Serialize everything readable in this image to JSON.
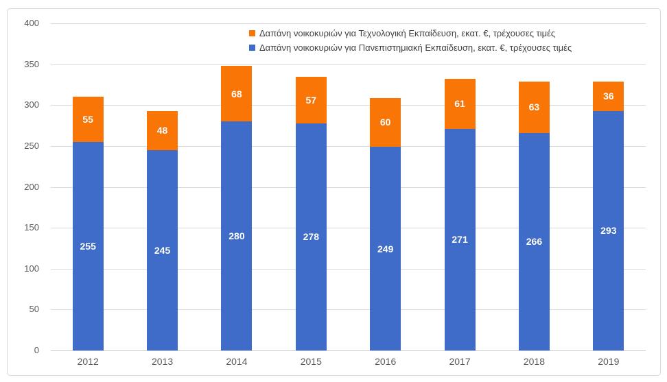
{
  "chart_data": {
    "type": "bar",
    "stacked": true,
    "categories": [
      "2012",
      "2013",
      "2014",
      "2015",
      "2016",
      "2017",
      "2018",
      "2019"
    ],
    "series": [
      {
        "name": "Δαπάνη νοικοκυριών για Πανεπιστημιακή Εκπαίδευση, εκατ. €, τρέχουσες τιμές",
        "key": "university",
        "color": "#3E6CC8",
        "values": [
          255,
          245,
          280,
          278,
          249,
          271,
          266,
          293
        ]
      },
      {
        "name": "Δαπάνη νοικοκυριών για Τεχνολογική Εκπαίδευση, εκατ. €, τρέχουσες τιμές",
        "key": "technological",
        "color": "#F97505",
        "values": [
          55,
          48,
          68,
          57,
          60,
          61,
          63,
          36
        ]
      }
    ],
    "data_labels_shown": true,
    "data_label_color": "#FFFFFF",
    "ylim": [
      0,
      400
    ],
    "ytick_step": 50,
    "yticks": [
      0,
      50,
      100,
      150,
      200,
      250,
      300,
      350,
      400
    ],
    "grid": true,
    "gridline_color": "#D9D9D9",
    "legend_position": "top",
    "legend_order_series_indexes": [
      1,
      0
    ],
    "title": "",
    "xlabel": "",
    "ylabel": ""
  },
  "frame": {
    "border_color": "#D9D9D9",
    "background": "#FFFFFF"
  }
}
